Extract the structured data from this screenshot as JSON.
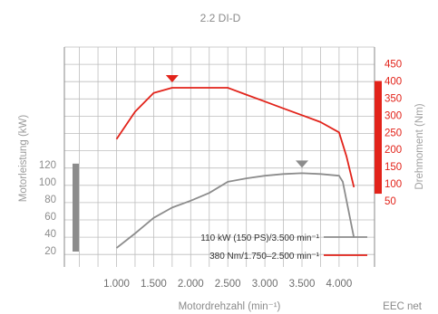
{
  "chart_data": {
    "type": "line",
    "title": "2.2 DI-D",
    "xlabel": "Motordrehzahl (min⁻¹)",
    "ylabel_left": "Motorleistung (kW)",
    "ylabel_right": "Drehmoment (Nm)",
    "note": "EEC net",
    "x_ticks": [
      "1.000",
      "1.500",
      "2.000",
      "2.500",
      "3.000",
      "3.500",
      "4.000"
    ],
    "x_tick_values": [
      1000,
      1500,
      2000,
      2500,
      3000,
      3500,
      4000
    ],
    "y_left_ticks": [
      "20",
      "40",
      "60",
      "80",
      "100",
      "120"
    ],
    "y_left_tick_values": [
      20,
      40,
      60,
      80,
      100,
      120
    ],
    "y_left_range": [
      20,
      120
    ],
    "y_right_ticks": [
      "50",
      "100",
      "150",
      "200",
      "250",
      "300",
      "350",
      "400",
      "450"
    ],
    "y_right_tick_values": [
      50,
      100,
      150,
      200,
      250,
      300,
      350,
      400,
      450
    ],
    "y_right_range": [
      50,
      450
    ],
    "grid": true,
    "legend_position": "bottom-right",
    "series": [
      {
        "name": "110 kW (150 PS)/3.500 min⁻¹",
        "axis": "left",
        "color": "#8c8c8c",
        "x": [
          1000,
          1250,
          1500,
          1750,
          2000,
          2250,
          2500,
          2750,
          3000,
          3250,
          3500,
          3750,
          4000,
          4050,
          4200
        ],
        "y": [
          23,
          40,
          58,
          70,
          78,
          87,
          100,
          104,
          107,
          109,
          110,
          109,
          107,
          100,
          35
        ]
      },
      {
        "name": "380 Nm/1.750–2.500 min⁻¹",
        "axis": "right",
        "color": "#e2231a",
        "x": [
          1000,
          1250,
          1500,
          1750,
          2000,
          2250,
          2500,
          2750,
          3000,
          3250,
          3500,
          3750,
          4000,
          4100,
          4200
        ],
        "y": [
          230,
          310,
          365,
          380,
          380,
          380,
          380,
          360,
          340,
          320,
          300,
          280,
          250,
          180,
          90
        ]
      }
    ],
    "markers": [
      {
        "series": 1,
        "x": 1750,
        "color": "#e2231a"
      },
      {
        "series": 0,
        "x": 3500,
        "color": "#8c8c8c"
      }
    ]
  }
}
